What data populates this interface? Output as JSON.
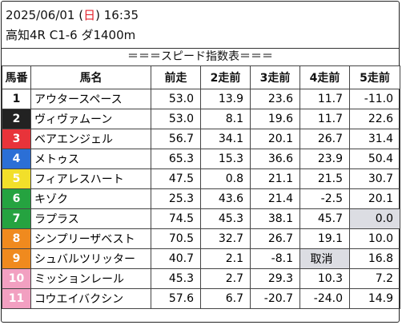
{
  "header": {
    "date": "2025/06/01",
    "day_open": "(",
    "day": "日",
    "day_close": ")",
    "time": "16:35",
    "race": "高知4R C1-6 ダ1400m",
    "title": "＝＝＝スピード指数表＝＝＝"
  },
  "columns": [
    "馬番",
    "馬名",
    "前走",
    "2走前",
    "3走前",
    "4走前",
    "5走前"
  ],
  "colors": {
    "frame_1": "#ffffff",
    "frame_2": "#222222",
    "frame_3": "#e8333a",
    "frame_4": "#2b6fd6",
    "frame_5": "#f2df2a",
    "frame_6": "#25a340",
    "frame_7": "#f08a1e",
    "frame_8": "#f2a0c1",
    "highlight": "#dcdde3"
  },
  "rows": [
    {
      "num": "1",
      "name": "アウタースペース",
      "v": [
        "53.0",
        "13.9",
        "23.6",
        "11.7",
        "-11.0"
      ]
    },
    {
      "num": "2",
      "name": "ヴィヴァムーン",
      "v": [
        "53.0",
        "8.1",
        "19.6",
        "11.7",
        "22.6"
      ]
    },
    {
      "num": "3",
      "name": "ベアエンジェル",
      "v": [
        "56.7",
        "34.1",
        "20.1",
        "26.7",
        "31.4"
      ]
    },
    {
      "num": "4",
      "name": "メトゥス",
      "v": [
        "65.3",
        "15.3",
        "36.6",
        "23.9",
        "50.4"
      ]
    },
    {
      "num": "5",
      "name": "フィアレスハート",
      "v": [
        "47.5",
        "0.8",
        "21.1",
        "21.5",
        "30.7"
      ]
    },
    {
      "num": "6",
      "name": "キゾク",
      "v": [
        "25.3",
        "43.6",
        "21.4",
        "-2.5",
        "20.1"
      ]
    },
    {
      "num": "7",
      "name": "ラプラス",
      "v": [
        "74.5",
        "45.3",
        "38.1",
        "45.7",
        "0.0"
      ]
    },
    {
      "num": "8",
      "name": "シンプリーザベスト",
      "v": [
        "70.5",
        "32.7",
        "26.7",
        "19.1",
        "10.0"
      ]
    },
    {
      "num": "9",
      "name": "シュバルツリッター",
      "v": [
        "40.7",
        "2.1",
        "-8.1",
        "取消",
        "16.8"
      ]
    },
    {
      "num": "10",
      "name": "ミッションレール",
      "v": [
        "45.3",
        "2.7",
        "29.3",
        "10.3",
        "7.2"
      ]
    },
    {
      "num": "11",
      "name": "コウエイバクシン",
      "v": [
        "57.6",
        "6.7",
        "-20.7",
        "-24.0",
        "14.9"
      ]
    }
  ]
}
